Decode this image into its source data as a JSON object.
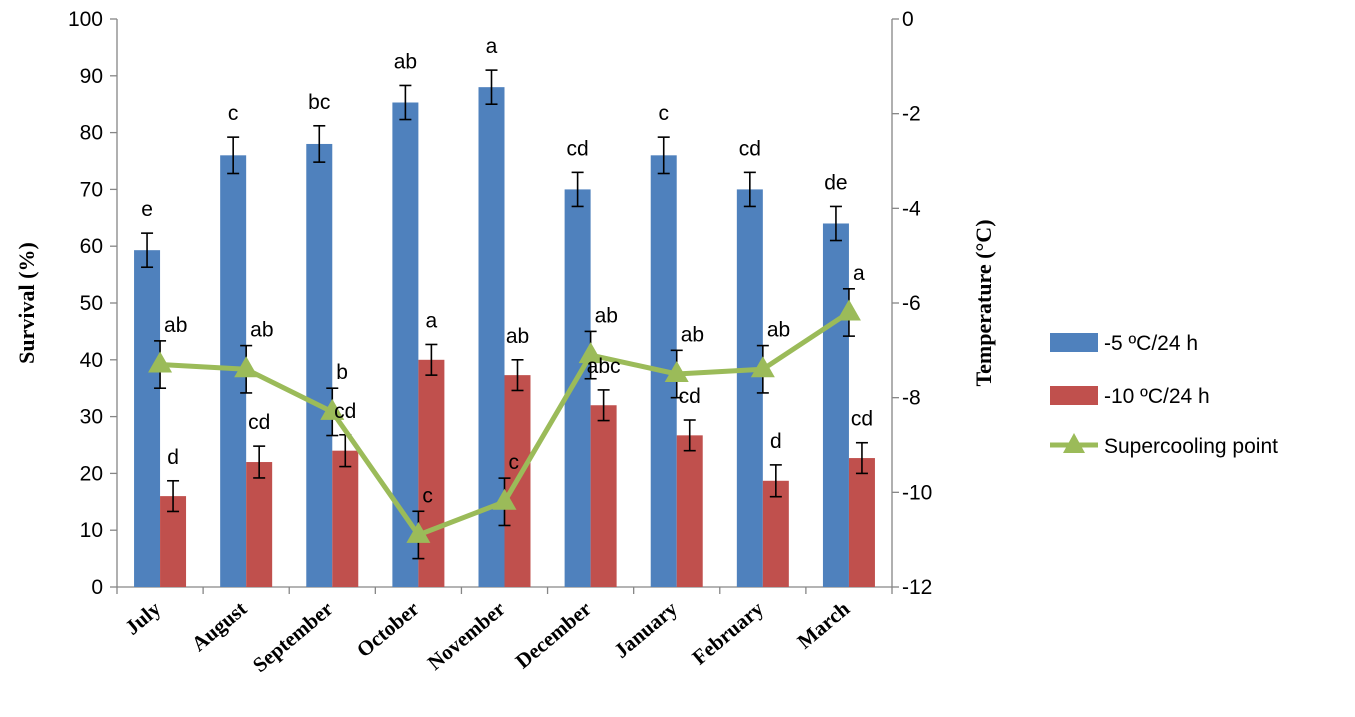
{
  "chart_data": {
    "type": "bar",
    "categories": [
      "July",
      "August",
      "September",
      "October",
      "November",
      "December",
      "January",
      "February",
      "March"
    ],
    "ylabel": "Survival (%)",
    "y2label": "Temperature (°C)",
    "ylim": [
      0,
      100
    ],
    "yticks": [
      0,
      10,
      20,
      30,
      40,
      50,
      60,
      70,
      80,
      90,
      100
    ],
    "y2lim": [
      -12,
      0
    ],
    "y2ticks": [
      -12,
      -10,
      -8,
      -6,
      -4,
      -2,
      0
    ],
    "grid": false,
    "legend_position": "right",
    "series": [
      {
        "name": "-5 ºC/24 h",
        "kind": "bar",
        "axis": "left",
        "color": "#4f81bd",
        "values": [
          59.3,
          76,
          78,
          85.3,
          88,
          70,
          76,
          70,
          64
        ],
        "errors": [
          3,
          3.2,
          3.2,
          3,
          3,
          3,
          3.2,
          3,
          3
        ],
        "letters": [
          "e",
          "c",
          "bc",
          "ab",
          "a",
          "cd",
          "c",
          "cd",
          "de"
        ]
      },
      {
        "name": "-10 ºC/24 h",
        "kind": "bar",
        "axis": "left",
        "color": "#c0504d",
        "values": [
          16,
          22,
          24,
          40,
          37.3,
          32,
          26.7,
          18.7,
          22.7
        ],
        "errors": [
          2.7,
          2.8,
          2.8,
          2.7,
          2.7,
          2.7,
          2.7,
          2.8,
          2.7
        ],
        "letters": [
          "d",
          "cd",
          "cd",
          "a",
          "ab",
          "abc",
          "cd",
          "d",
          "cd"
        ]
      },
      {
        "name": "Supercooling point",
        "kind": "line",
        "axis": "right",
        "color": "#9bbb59",
        "values": [
          -7.3,
          -7.4,
          -8.3,
          -10.9,
          -10.2,
          -7.1,
          -7.5,
          -7.4,
          -6.2
        ],
        "errors": [
          0.5,
          0.5,
          0.5,
          0.5,
          0.5,
          0.5,
          0.5,
          0.5,
          0.5
        ],
        "letters": [
          "ab",
          "ab",
          "b",
          "c",
          "c",
          "ab",
          "ab",
          "ab",
          "a"
        ]
      }
    ]
  }
}
